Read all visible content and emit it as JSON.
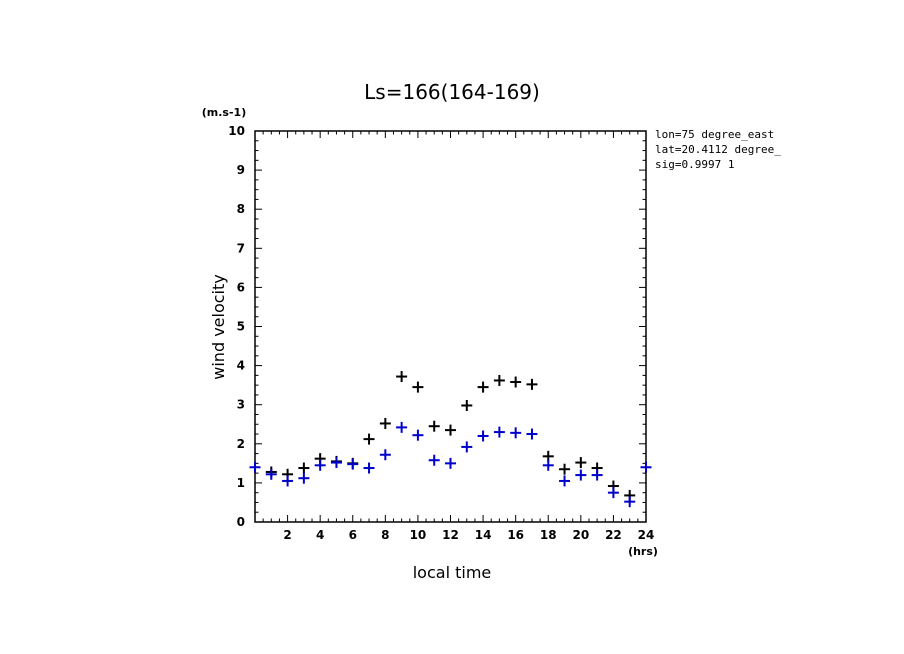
{
  "chart_data": {
    "type": "scatter",
    "title": "Ls=166(164-169)",
    "xlabel": "local time",
    "ylabel": "wind velocity",
    "x_unit": "(hrs)",
    "y_unit": "(m.s-1)",
    "xlim": [
      0,
      24
    ],
    "ylim": [
      0,
      10
    ],
    "x_ticks": [
      2,
      4,
      6,
      8,
      10,
      12,
      14,
      16,
      18,
      20,
      22,
      24
    ],
    "y_ticks": [
      0,
      1,
      2,
      3,
      4,
      5,
      6,
      7,
      8,
      9,
      10
    ],
    "grid": false,
    "annotations": [
      "lon=75 degree_east",
      "lat=20.4112 degree_",
      "sig=0.9997 1"
    ],
    "series": [
      {
        "color": "#000000",
        "marker": "plus",
        "x": [
          1,
          2,
          3,
          4,
          5,
          6,
          7,
          8,
          9,
          10,
          11,
          12,
          13,
          14,
          15,
          16,
          17,
          18,
          19,
          20,
          21,
          22,
          23
        ],
        "y": [
          1.28,
          1.22,
          1.38,
          1.62,
          1.55,
          1.5,
          2.12,
          2.52,
          3.72,
          3.45,
          2.45,
          2.35,
          2.98,
          3.45,
          3.62,
          3.58,
          3.52,
          1.68,
          1.35,
          1.52,
          1.38,
          0.92,
          0.68
        ]
      },
      {
        "color": "#0000cc",
        "marker": "plus",
        "x": [
          0,
          1,
          2,
          3,
          4,
          5,
          6,
          7,
          8,
          9,
          10,
          11,
          12,
          13,
          14,
          15,
          16,
          17,
          18,
          19,
          20,
          21,
          22,
          23,
          24
        ],
        "y": [
          1.4,
          1.22,
          1.05,
          1.12,
          1.45,
          1.52,
          1.48,
          1.38,
          1.72,
          2.42,
          2.22,
          1.58,
          1.5,
          1.92,
          2.2,
          2.3,
          2.28,
          2.25,
          1.45,
          1.05,
          1.2,
          1.2,
          0.75,
          0.52,
          1.4
        ]
      }
    ]
  }
}
